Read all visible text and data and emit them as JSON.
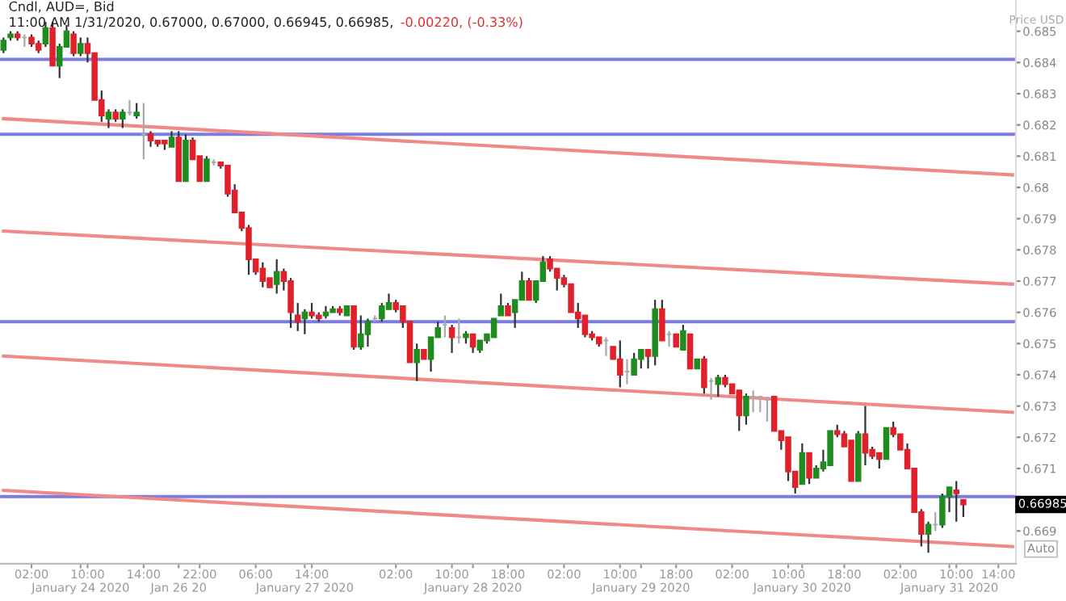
{
  "chart_data": {
    "type": "candlestick",
    "title": "Cndl, AUD=, Bid",
    "subtitle": "11:00 AM 1/31/2020, 0.67000, 0.67000, 0.66945, 0.66985,",
    "ylabel": "Price USD",
    "annotations": [
      "-0.00220, (-0.33%)",
      "0.66985",
      "Auto"
    ],
    "categories": [
      null,
      null,
      null,
      null,
      "02:00",
      null,
      null,
      null,
      null,
      null,
      null,
      "\nJanuary 24 2020",
      "10:00",
      null,
      null,
      null,
      null,
      null,
      null,
      null,
      "14:00",
      null,
      null,
      null,
      null,
      "\nJan 26 20",
      null,
      null,
      "22:00",
      null,
      null,
      null,
      null,
      null,
      null,
      null,
      "06:00",
      null,
      null,
      null,
      null,
      null,
      null,
      "\nJanuary 27 2020",
      "14:00",
      null,
      null,
      null,
      null,
      null,
      null,
      null,
      null,
      null,
      null,
      null,
      "02:00",
      null,
      null,
      null,
      null,
      null,
      null,
      null,
      "10:00",
      null,
      null,
      "\nJanuary 28 2020",
      null,
      null,
      null,
      null,
      "18:00",
      null,
      null,
      null,
      null,
      null,
      null,
      null,
      "02:00",
      null,
      null,
      null,
      null,
      null,
      null,
      null,
      "10:00",
      null,
      null,
      "\nJanuary 29 2020",
      null,
      null,
      null,
      null,
      "18:00",
      null,
      null,
      null,
      null,
      null,
      null,
      null,
      "02:00",
      null,
      null,
      null,
      null,
      null,
      null,
      null,
      "10:00",
      null,
      "\nJanuary 30 2020",
      null,
      null,
      null,
      null,
      null,
      "18:00",
      null,
      null,
      null,
      null,
      null,
      null,
      null,
      "02:00",
      null,
      null,
      null,
      null,
      null,
      null,
      "\nJanuary 31 2020",
      "10:00",
      null,
      null,
      null,
      null,
      null,
      "14:00",
      null,
      null
    ],
    "ohlc": [
      [
        0.6844,
        0.6848,
        0.6843,
        0.6847
      ],
      [
        0.6848,
        0.685,
        0.6847,
        0.6849
      ],
      [
        0.6849,
        0.685,
        0.6847,
        0.6848
      ],
      [
        0.6848,
        0.6849,
        0.6845,
        0.6848
      ],
      [
        0.6848,
        0.6849,
        0.6845,
        0.6846
      ],
      [
        0.6846,
        0.6847,
        0.6843,
        0.6844
      ],
      [
        0.6846,
        0.6853,
        0.6845,
        0.6851
      ],
      [
        0.6851,
        0.6853,
        0.6839,
        0.6839
      ],
      [
        0.6839,
        0.6846,
        0.6835,
        0.6845
      ],
      [
        0.6845,
        0.6852,
        0.6845,
        0.685
      ],
      [
        0.6849,
        0.685,
        0.6842,
        0.6843
      ],
      [
        0.6843,
        0.6848,
        0.6842,
        0.6846
      ],
      [
        0.6846,
        0.6848,
        0.684,
        0.6843
      ],
      [
        0.6843,
        0.6843,
        0.6828,
        0.6828
      ],
      [
        0.6828,
        0.6831,
        0.6821,
        0.6823
      ],
      [
        0.6822,
        0.6825,
        0.6819,
        0.6824
      ],
      [
        0.6824,
        0.6825,
        0.6821,
        0.6822
      ],
      [
        0.6822,
        0.6825,
        0.6819,
        0.6824
      ],
      [
        0.6824,
        0.6828,
        0.6823,
        0.6824
      ],
      [
        0.6823,
        0.6827,
        0.6822,
        0.6824
      ],
      [
        0.6817,
        0.6827,
        0.6809,
        0.6817
      ],
      [
        0.6817,
        0.6818,
        0.6813,
        0.6815
      ],
      [
        0.6815,
        0.6815,
        0.6813,
        0.6814
      ],
      [
        0.6815,
        0.6815,
        0.6812,
        0.6814
      ],
      [
        0.6813,
        0.6818,
        0.6813,
        0.6816
      ],
      [
        0.6816,
        0.6818,
        0.6802,
        0.6802
      ],
      [
        0.6802,
        0.6817,
        0.6802,
        0.6815
      ],
      [
        0.6815,
        0.6816,
        0.6809,
        0.6809
      ],
      [
        0.681,
        0.681,
        0.6802,
        0.6802
      ],
      [
        0.6802,
        0.681,
        0.6802,
        0.6809
      ],
      [
        0.6808,
        0.6809,
        0.6807,
        0.6808
      ],
      [
        0.6808,
        0.6808,
        0.6806,
        0.6807
      ],
      [
        0.6807,
        0.6807,
        0.6797,
        0.6798
      ],
      [
        0.6799,
        0.6801,
        0.6792,
        0.6792
      ],
      [
        0.6792,
        0.6792,
        0.6786,
        0.6787
      ],
      [
        0.6787,
        0.6788,
        0.6772,
        0.6777
      ],
      [
        0.6777,
        0.6777,
        0.6772,
        0.6773
      ],
      [
        0.6774,
        0.6776,
        0.6768,
        0.677
      ],
      [
        0.6771,
        0.6771,
        0.6768,
        0.6768
      ],
      [
        0.6769,
        0.6777,
        0.6766,
        0.6773
      ],
      [
        0.6773,
        0.6774,
        0.6767,
        0.677
      ],
      [
        0.677,
        0.6771,
        0.6755,
        0.676
      ],
      [
        0.6759,
        0.6763,
        0.6754,
        0.6757
      ],
      [
        0.6758,
        0.6761,
        0.6753,
        0.676
      ],
      [
        0.676,
        0.6763,
        0.6758,
        0.6759
      ],
      [
        0.6759,
        0.676,
        0.6757,
        0.6758
      ],
      [
        0.6759,
        0.6762,
        0.6758,
        0.676
      ],
      [
        0.676,
        0.6762,
        0.676,
        0.6761
      ],
      [
        0.6761,
        0.6762,
        0.6759,
        0.676
      ],
      [
        0.6759,
        0.6762,
        0.6759,
        0.6762
      ],
      [
        0.6762,
        0.6762,
        0.6748,
        0.6749
      ],
      [
        0.6749,
        0.6759,
        0.6748,
        0.6753
      ],
      [
        0.6753,
        0.6758,
        0.6749,
        0.6757
      ],
      [
        0.6758,
        0.6759,
        0.6757,
        0.6758
      ],
      [
        0.6758,
        0.6763,
        0.6757,
        0.6762
      ],
      [
        0.6761,
        0.6766,
        0.6761,
        0.6763
      ],
      [
        0.6763,
        0.6764,
        0.676,
        0.6761
      ],
      [
        0.6762,
        0.6762,
        0.6755,
        0.6757
      ],
      [
        0.6757,
        0.6757,
        0.6744,
        0.6744
      ],
      [
        0.6744,
        0.675,
        0.6738,
        0.6748
      ],
      [
        0.6748,
        0.6748,
        0.6745,
        0.6745
      ],
      [
        0.6745,
        0.6752,
        0.6741,
        0.6752
      ],
      [
        0.6752,
        0.6757,
        0.6752,
        0.6755
      ],
      [
        0.6756,
        0.6759,
        0.6752,
        0.6756
      ],
      [
        0.6755,
        0.6756,
        0.6747,
        0.6752
      ],
      [
        0.6752,
        0.6758,
        0.675,
        0.6752
      ],
      [
        0.6752,
        0.6754,
        0.675,
        0.6753
      ],
      [
        0.6753,
        0.6753,
        0.6747,
        0.6749
      ],
      [
        0.6748,
        0.6751,
        0.6747,
        0.6751
      ],
      [
        0.6751,
        0.6753,
        0.675,
        0.6753
      ],
      [
        0.6752,
        0.6758,
        0.6752,
        0.6758
      ],
      [
        0.6759,
        0.6766,
        0.6759,
        0.6762
      ],
      [
        0.6762,
        0.6763,
        0.6759,
        0.6759
      ],
      [
        0.676,
        0.6764,
        0.6755,
        0.6764
      ],
      [
        0.6764,
        0.6773,
        0.6764,
        0.677
      ],
      [
        0.677,
        0.6771,
        0.6764,
        0.6764
      ],
      [
        0.6764,
        0.677,
        0.6763,
        0.677
      ],
      [
        0.677,
        0.6778,
        0.677,
        0.6776
      ],
      [
        0.6777,
        0.6778,
        0.6773,
        0.6774
      ],
      [
        0.6774,
        0.6774,
        0.6767,
        0.6771
      ],
      [
        0.6771,
        0.6772,
        0.6768,
        0.6769
      ],
      [
        0.6769,
        0.6769,
        0.676,
        0.676
      ],
      [
        0.676,
        0.6763,
        0.6755,
        0.6758
      ],
      [
        0.6759,
        0.6759,
        0.6752,
        0.6753
      ],
      [
        0.6753,
        0.6754,
        0.6751,
        0.6752
      ],
      [
        0.6752,
        0.6752,
        0.6749,
        0.675
      ],
      [
        0.6751,
        0.6752,
        0.6746,
        0.6751
      ],
      [
        0.6749,
        0.6749,
        0.6745,
        0.6745
      ],
      [
        0.6745,
        0.6751,
        0.6736,
        0.674
      ],
      [
        0.6741,
        0.6745,
        0.6737,
        0.6741
      ],
      [
        0.674,
        0.6747,
        0.674,
        0.6745
      ],
      [
        0.6745,
        0.6748,
        0.6742,
        0.6748
      ],
      [
        0.6748,
        0.6748,
        0.6742,
        0.6746
      ],
      [
        0.6746,
        0.6764,
        0.6743,
        0.6761
      ],
      [
        0.6761,
        0.6764,
        0.6751,
        0.6751
      ],
      [
        0.6753,
        0.6754,
        0.6749,
        0.6753
      ],
      [
        0.6753,
        0.6753,
        0.6749,
        0.6749
      ],
      [
        0.6748,
        0.6756,
        0.6748,
        0.6754
      ],
      [
        0.6753,
        0.6753,
        0.6742,
        0.6742
      ],
      [
        0.6742,
        0.6745,
        0.6742,
        0.6745
      ],
      [
        0.6745,
        0.6746,
        0.6734,
        0.6736
      ],
      [
        0.6738,
        0.6739,
        0.6732,
        0.6738
      ],
      [
        0.6737,
        0.674,
        0.6733,
        0.6739
      ],
      [
        0.6739,
        0.674,
        0.6736,
        0.6737
      ],
      [
        0.6737,
        0.6737,
        0.6734,
        0.6734
      ],
      [
        0.6735,
        0.6735,
        0.6722,
        0.6727
      ],
      [
        0.6727,
        0.6734,
        0.6724,
        0.6733
      ],
      [
        0.6733,
        0.6735,
        0.6728,
        0.6733
      ],
      [
        0.6733,
        0.6733,
        0.6728,
        0.6733
      ],
      [
        0.6732,
        0.6733,
        0.6725,
        0.6732
      ],
      [
        0.6733,
        0.6733,
        0.6722,
        0.6722
      ],
      [
        0.6722,
        0.6722,
        0.6716,
        0.6719
      ],
      [
        0.672,
        0.672,
        0.6706,
        0.6709
      ],
      [
        0.6709,
        0.6709,
        0.6702,
        0.6704
      ],
      [
        0.6705,
        0.6718,
        0.6705,
        0.6715
      ],
      [
        0.6715,
        0.6715,
        0.6705,
        0.6707
      ],
      [
        0.6707,
        0.6711,
        0.6707,
        0.671
      ],
      [
        0.671,
        0.6716,
        0.6709,
        0.6712
      ],
      [
        0.6711,
        0.6722,
        0.6711,
        0.6722
      ],
      [
        0.6722,
        0.6724,
        0.672,
        0.6721
      ],
      [
        0.6721,
        0.6722,
        0.6717,
        0.6717
      ],
      [
        0.6719,
        0.6719,
        0.6706,
        0.6706
      ],
      [
        0.6706,
        0.6722,
        0.6706,
        0.6721
      ],
      [
        0.6721,
        0.673,
        0.6711,
        0.6715
      ],
      [
        0.6716,
        0.6717,
        0.6713,
        0.6714
      ],
      [
        0.6715,
        0.6715,
        0.671,
        0.6713
      ],
      [
        0.6713,
        0.6723,
        0.6713,
        0.6723
      ],
      [
        0.6723,
        0.6725,
        0.672,
        0.6721
      ],
      [
        0.6721,
        0.6721,
        0.6716,
        0.6716
      ],
      [
        0.6716,
        0.6718,
        0.671,
        0.671
      ],
      [
        0.671,
        0.671,
        0.6696,
        0.6696
      ],
      [
        0.6696,
        0.6697,
        0.6685,
        0.6689
      ],
      [
        0.6689,
        0.6693,
        0.6683,
        0.6692
      ],
      [
        0.6692,
        0.6696,
        0.669,
        0.6692
      ],
      [
        0.6692,
        0.6702,
        0.6691,
        0.6701
      ],
      [
        0.6701,
        0.6704,
        0.6696,
        0.6704
      ],
      [
        0.6703,
        0.6706,
        0.6693,
        0.6702
      ],
      [
        0.67,
        0.67,
        0.66945,
        0.66985
      ],
      null,
      null,
      null,
      null,
      null,
      null,
      null
    ],
    "series": [
      {
        "type": "line",
        "color": "#f08a8a",
        "values": [
          0.6822,
          null,
          null,
          null,
          null,
          null,
          null,
          null,
          null,
          null,
          null,
          null,
          null,
          null,
          null,
          null,
          null,
          null,
          null,
          null,
          null,
          null,
          null,
          null,
          null,
          null,
          null,
          null,
          null,
          null,
          null,
          null,
          null,
          null,
          null,
          null,
          null,
          null,
          null,
          null,
          null,
          null,
          null,
          null,
          null,
          null,
          null,
          null,
          null,
          null,
          null,
          null,
          null,
          null,
          null,
          null,
          null,
          null,
          null,
          null,
          null,
          null,
          null,
          null,
          null,
          null,
          null,
          null,
          null,
          null,
          null,
          null,
          null,
          null,
          null,
          null,
          null,
          null,
          null,
          null,
          null,
          null,
          null,
          null,
          null,
          null,
          null,
          null,
          null,
          null,
          null,
          null,
          null,
          null,
          null,
          null,
          null,
          null,
          null,
          null,
          null,
          null,
          null,
          null,
          null,
          null,
          null,
          null,
          null,
          null,
          null,
          null,
          null,
          null,
          null,
          null,
          null,
          null,
          null,
          null,
          null,
          null,
          null,
          null,
          null,
          null,
          null,
          null,
          null,
          null,
          null,
          null,
          null,
          null,
          null,
          null,
          null,
          null,
          null,
          null,
          null,
          null,
          null,
          null,
          0.6804
        ]
      },
      {
        "type": "line",
        "color": "#f08a8a",
        "values": [
          0.6786,
          null,
          null,
          null,
          null,
          null,
          null,
          null,
          null,
          null,
          null,
          null,
          null,
          null,
          null,
          null,
          null,
          null,
          null,
          null,
          null,
          null,
          null,
          null,
          null,
          null,
          null,
          null,
          null,
          null,
          null,
          null,
          null,
          null,
          null,
          null,
          null,
          null,
          null,
          null,
          null,
          null,
          null,
          null,
          null,
          null,
          null,
          null,
          null,
          null,
          null,
          null,
          null,
          null,
          null,
          null,
          null,
          null,
          null,
          null,
          null,
          null,
          null,
          null,
          null,
          null,
          null,
          null,
          null,
          null,
          null,
          null,
          null,
          null,
          null,
          null,
          null,
          null,
          null,
          null,
          null,
          null,
          null,
          null,
          null,
          null,
          null,
          null,
          null,
          null,
          null,
          null,
          null,
          null,
          null,
          null,
          null,
          null,
          null,
          null,
          null,
          null,
          null,
          null,
          null,
          null,
          null,
          null,
          null,
          null,
          null,
          null,
          null,
          null,
          null,
          null,
          null,
          null,
          null,
          null,
          null,
          null,
          null,
          null,
          null,
          null,
          null,
          null,
          null,
          null,
          null,
          null,
          null,
          null,
          null,
          null,
          null,
          null,
          null,
          null,
          null,
          null,
          null,
          null,
          0.6769
        ]
      },
      {
        "type": "line",
        "color": "#f08a8a",
        "values": [
          0.6746,
          null,
          null,
          null,
          null,
          null,
          null,
          null,
          null,
          null,
          null,
          null,
          null,
          null,
          null,
          null,
          null,
          null,
          null,
          null,
          null,
          null,
          null,
          null,
          null,
          null,
          null,
          null,
          null,
          null,
          null,
          null,
          null,
          null,
          null,
          null,
          null,
          null,
          null,
          null,
          null,
          null,
          null,
          null,
          null,
          null,
          null,
          null,
          null,
          null,
          null,
          null,
          null,
          null,
          null,
          null,
          null,
          null,
          null,
          null,
          null,
          null,
          null,
          null,
          null,
          null,
          null,
          null,
          null,
          null,
          null,
          null,
          null,
          null,
          null,
          null,
          null,
          null,
          null,
          null,
          null,
          null,
          null,
          null,
          null,
          null,
          null,
          null,
          null,
          null,
          null,
          null,
          null,
          null,
          null,
          null,
          null,
          null,
          null,
          null,
          null,
          null,
          null,
          null,
          null,
          null,
          null,
          null,
          null,
          null,
          null,
          null,
          null,
          null,
          null,
          null,
          null,
          null,
          null,
          null,
          null,
          null,
          null,
          null,
          null,
          null,
          null,
          null,
          null,
          null,
          null,
          null,
          null,
          null,
          null,
          null,
          null,
          null,
          null,
          null,
          null,
          null,
          null,
          null,
          0.6728
        ]
      },
      {
        "type": "line",
        "color": "#f08a8a",
        "values": [
          0.6703,
          null,
          null,
          null,
          null,
          null,
          null,
          null,
          null,
          null,
          null,
          null,
          null,
          null,
          null,
          null,
          null,
          null,
          null,
          null,
          null,
          null,
          null,
          null,
          null,
          null,
          null,
          null,
          null,
          null,
          null,
          null,
          null,
          null,
          null,
          null,
          null,
          null,
          null,
          null,
          null,
          null,
          null,
          null,
          null,
          null,
          null,
          null,
          null,
          null,
          null,
          null,
          null,
          null,
          null,
          null,
          null,
          null,
          null,
          null,
          null,
          null,
          null,
          null,
          null,
          null,
          null,
          null,
          null,
          null,
          null,
          null,
          null,
          null,
          null,
          null,
          null,
          null,
          null,
          null,
          null,
          null,
          null,
          null,
          null,
          null,
          null,
          null,
          null,
          null,
          null,
          null,
          null,
          null,
          null,
          null,
          null,
          null,
          null,
          null,
          null,
          null,
          null,
          null,
          null,
          null,
          null,
          null,
          null,
          null,
          null,
          null,
          null,
          null,
          null,
          null,
          null,
          null,
          null,
          null,
          null,
          null,
          null,
          null,
          null,
          null,
          null,
          null,
          null,
          null,
          null,
          null,
          null,
          null,
          null,
          null,
          null,
          null,
          null,
          null,
          null,
          null,
          null,
          null,
          0.6685
        ]
      }
    ],
    "ref_lines": [
      {
        "axis": "y",
        "value": 0.6841,
        "color": "#7b7be0"
      },
      {
        "axis": "y",
        "value": 0.6817,
        "color": "#7b7be0"
      },
      {
        "axis": "y",
        "value": 0.6757,
        "color": "#7b7be0"
      },
      {
        "axis": "y",
        "value": 0.6701,
        "color": "#7b7be0"
      }
    ],
    "ylim": [
      0.66795,
      0.686
    ],
    "yticks": [
      0.669,
      {
        "value": 0.67,
        "label": null
      },
      0.671,
      0.672,
      0.673,
      0.674,
      0.675,
      0.676,
      0.677,
      0.678,
      0.679,
      0.68,
      0.681,
      0.682,
      0.683,
      0.684,
      0.685
    ],
    "grid": false,
    "legend": false
  }
}
